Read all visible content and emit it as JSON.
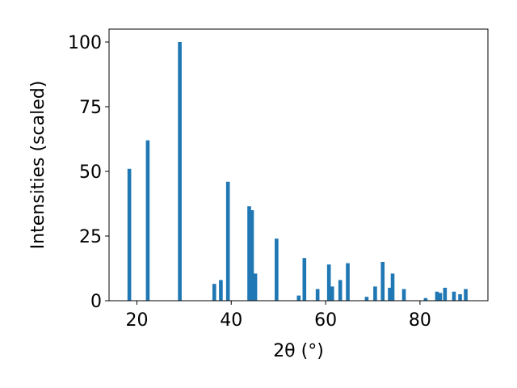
{
  "chart_data": {
    "type": "bar",
    "xlabel": "2θ (°)",
    "ylabel": "Intensities (scaled)",
    "xlim": [
      14.1,
      94.4
    ],
    "ylim": [
      0,
      105
    ],
    "xticks": [
      20,
      40,
      60,
      80
    ],
    "yticks": [
      0,
      25,
      50,
      75,
      100
    ],
    "bar_color": "#1f77b4",
    "x": [
      18.4,
      22.3,
      29.1,
      36.4,
      37.8,
      39.3,
      43.8,
      44.4,
      45.1,
      49.6,
      54.3,
      55.5,
      58.3,
      60.7,
      61.4,
      63.1,
      64.7,
      68.7,
      70.5,
      72.1,
      73.6,
      74.2,
      76.6,
      81.2,
      83.6,
      84.3,
      85.3,
      87.2,
      88.5,
      89.7
    ],
    "values": [
      51,
      62,
      100,
      6.5,
      8,
      46,
      36.5,
      35,
      10.5,
      24,
      2,
      16.5,
      4.5,
      14,
      5.5,
      8,
      14.5,
      1.5,
      5.5,
      15,
      5,
      10.5,
      4.5,
      1,
      3.5,
      3,
      5,
      3.5,
      2.5,
      4.5
    ]
  }
}
